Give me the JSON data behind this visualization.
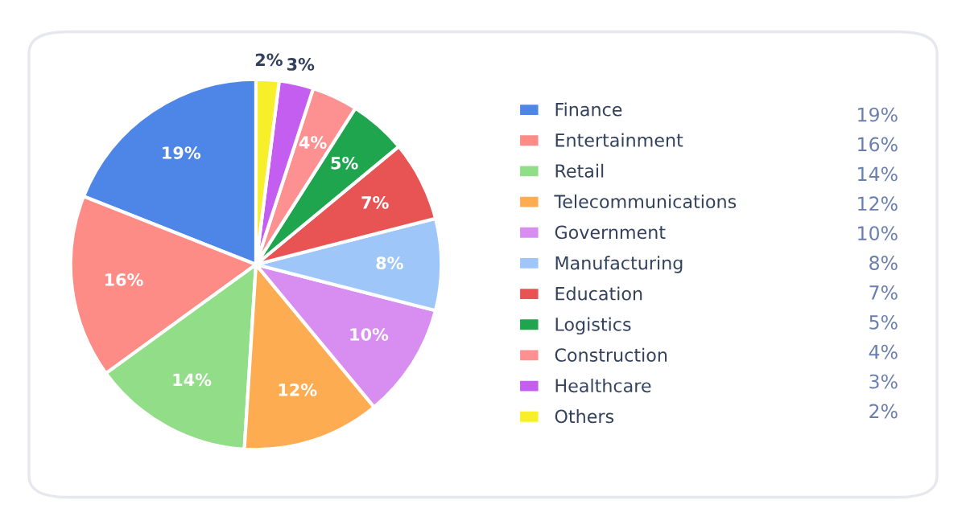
{
  "chart_data": {
    "type": "pie",
    "categories": [
      "Finance",
      "Entertainment",
      "Retail",
      "Telecommunications",
      "Government",
      "Manufacturing",
      "Education",
      "Logistics",
      "Construction",
      "Healthcare",
      "Others"
    ],
    "values": [
      19,
      16,
      14,
      12,
      10,
      8,
      7,
      5,
      4,
      3,
      2
    ],
    "value_labels": [
      "19%",
      "16%",
      "14%",
      "12%",
      "10%",
      "8%",
      "7%",
      "5%",
      "4%",
      "3%",
      "2%"
    ],
    "colors": [
      "#4e86e8",
      "#fd8b86",
      "#92dd87",
      "#fdac52",
      "#d88ef0",
      "#9ec6f8",
      "#e85454",
      "#1fa54e",
      "#fd9191",
      "#c45ef0",
      "#f7ef2a"
    ],
    "legend": "right"
  }
}
